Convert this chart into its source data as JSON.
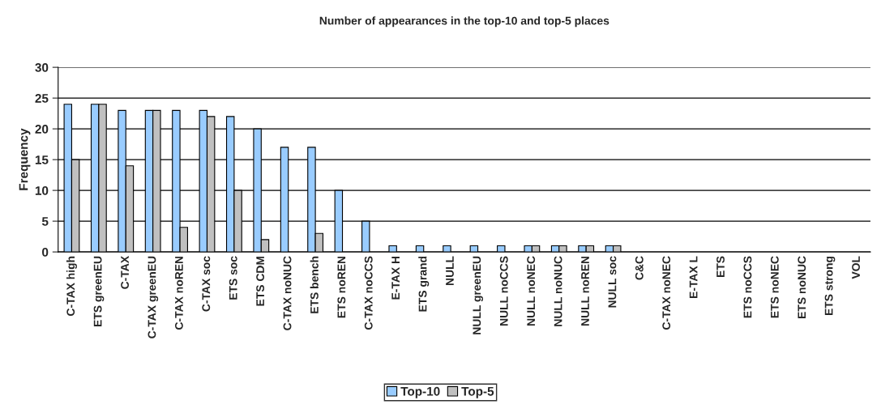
{
  "chart_data": {
    "type": "bar",
    "title": "Number of appearances in the top-10 and top-5 places",
    "ylabel": "Frequency",
    "categories": [
      "C-TAX high",
      "ETS greenEU",
      "C-TAX",
      "C-TAX greenEU",
      "C-TAX noREN",
      "C-TAX soc",
      "ETS soc",
      "ETS CDM",
      "C-TAX noNUC",
      "ETS bench",
      "ETS noREN",
      "C-TAX noCCS",
      "E-TAX H",
      "ETS grand",
      "NULL",
      "NULL greenEU",
      "NULL noCCS",
      "NULL noNEC",
      "NULL noNUC",
      "NULL noREN",
      "NULL soc",
      "C&C",
      "C-TAX noNEC",
      "E-TAX L",
      "ETS",
      "ETS noCCS",
      "ETS noNEC",
      "ETS noNUC",
      "ETS strong",
      "VOL"
    ],
    "series": [
      {
        "name": "Top-10",
        "color": "#99ccff",
        "values": [
          24,
          24,
          23,
          23,
          23,
          23,
          22,
          20,
          17,
          17,
          10,
          5,
          1,
          1,
          1,
          1,
          1,
          1,
          1,
          1,
          1,
          0,
          0,
          0,
          0,
          0,
          0,
          0,
          0,
          0
        ]
      },
      {
        "name": "Top-5",
        "color": "#c0c0c0",
        "values": [
          15,
          24,
          14,
          23,
          4,
          22,
          10,
          2,
          0,
          3,
          0,
          0,
          0,
          0,
          0,
          0,
          0,
          1,
          1,
          1,
          1,
          0,
          0,
          0,
          0,
          0,
          0,
          0,
          0,
          0
        ]
      }
    ],
    "ylim": [
      0,
      30
    ],
    "yticks": [
      0,
      5,
      10,
      15,
      20,
      25,
      30
    ],
    "grid": "y",
    "legend": "bottom"
  }
}
